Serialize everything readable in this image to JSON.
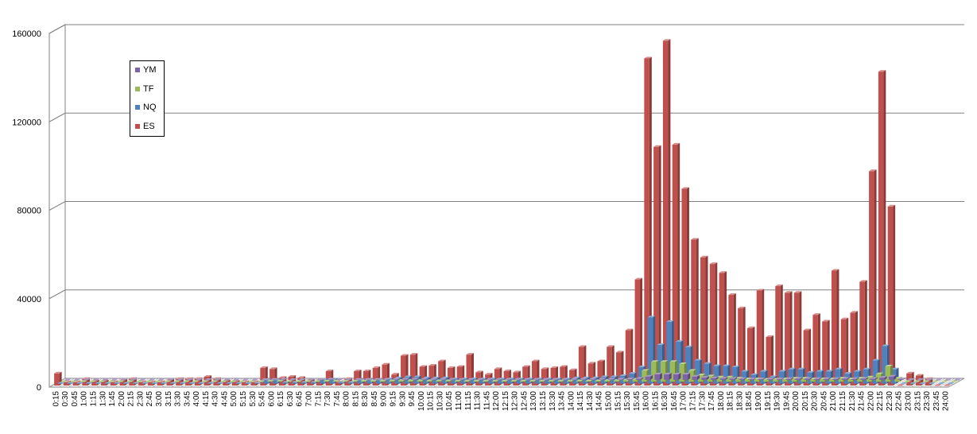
{
  "chart_data": {
    "type": "bar",
    "style": "3d-clustered-column",
    "ylim": [
      0,
      160000
    ],
    "yticks": [
      "0",
      "40000",
      "80000",
      "120000",
      "160000"
    ],
    "ytick_values": [
      0,
      40000,
      80000,
      120000,
      160000
    ],
    "grid": true,
    "legend_placement": "top-left",
    "categories": [
      "0:15",
      "0:30",
      "0:45",
      "1:00",
      "1:15",
      "1:30",
      "1:45",
      "2:00",
      "2:15",
      "2:30",
      "2:45",
      "3:00",
      "3:15",
      "3:30",
      "3:45",
      "4:00",
      "4:15",
      "4:30",
      "4:45",
      "5:00",
      "5:15",
      "5:30",
      "5:45",
      "6:00",
      "6:15",
      "6:30",
      "6:45",
      "7:00",
      "7:15",
      "7:30",
      "7:45",
      "8:00",
      "8:15",
      "8:30",
      "8:45",
      "9:00",
      "9:15",
      "9:30",
      "9:45",
      "10:00",
      "10:15",
      "10:30",
      "10:45",
      "11:00",
      "11:15",
      "11:30",
      "11:45",
      "12:00",
      "12:15",
      "12:30",
      "12:45",
      "13:00",
      "13:15",
      "13:30",
      "13:45",
      "14:00",
      "14:15",
      "14:30",
      "14:45",
      "15:00",
      "15:15",
      "15:30",
      "15:45",
      "16:00",
      "16:15",
      "16:30",
      "16:45",
      "17:00",
      "17:15",
      "17:30",
      "17:45",
      "18:00",
      "18:15",
      "18:30",
      "18:45",
      "19:00",
      "19:15",
      "19:30",
      "19:45",
      "20:00",
      "20:15",
      "20:30",
      "20:45",
      "21:00",
      "21:15",
      "21:30",
      "21:45",
      "22:00",
      "22:15",
      "22:30",
      "22:45",
      "23:00",
      "23:15",
      "23:30",
      "23:45",
      "24:00"
    ],
    "series": [
      {
        "name": "YM",
        "color": "#7f63a8",
        "values": [
          0,
          0,
          0,
          0,
          0,
          0,
          0,
          0,
          0,
          0,
          0,
          0,
          0,
          0,
          0,
          0,
          0,
          0,
          0,
          0,
          0,
          0,
          100,
          100,
          0,
          0,
          0,
          0,
          200,
          200,
          100,
          100,
          100,
          100,
          100,
          200,
          200,
          200,
          200,
          100,
          100,
          100,
          100,
          100,
          100,
          100,
          100,
          100,
          100,
          100,
          100,
          100,
          100,
          100,
          100,
          200,
          200,
          200,
          200,
          200,
          300,
          500,
          1500,
          2500,
          2500,
          2500,
          2500,
          1500,
          1000,
          800,
          600,
          500,
          400,
          300,
          300,
          300,
          300,
          400,
          500,
          500,
          400,
          400,
          400,
          500,
          400,
          500,
          500,
          1000,
          1500,
          300,
          0,
          0,
          0,
          0,
          0,
          0
        ]
      },
      {
        "name": "TF",
        "color": "#9bbb59",
        "values": [
          0,
          0,
          0,
          0,
          0,
          0,
          0,
          0,
          0,
          0,
          0,
          0,
          0,
          0,
          0,
          0,
          0,
          0,
          0,
          0,
          0,
          0,
          200,
          200,
          100,
          100,
          100,
          100,
          300,
          300,
          200,
          200,
          300,
          300,
          300,
          400,
          500,
          500,
          500,
          400,
          400,
          400,
          300,
          300,
          300,
          300,
          300,
          300,
          300,
          300,
          300,
          300,
          300,
          300,
          300,
          400,
          400,
          400,
          500,
          500,
          700,
          1000,
          5000,
          9000,
          9000,
          9000,
          8000,
          5000,
          3000,
          2500,
          2000,
          2000,
          1500,
          1200,
          1200,
          1000,
          1000,
          1200,
          1500,
          1500,
          1200,
          1200,
          1200,
          1500,
          1200,
          1500,
          2000,
          3500,
          7000,
          1500,
          0,
          0,
          0,
          0,
          0,
          0
        ]
      },
      {
        "name": "NQ",
        "color": "#4f81bd",
        "values": [
          100,
          100,
          100,
          100,
          100,
          100,
          100,
          100,
          100,
          100,
          100,
          100,
          100,
          100,
          100,
          100,
          100,
          100,
          100,
          100,
          100,
          200,
          1500,
          1500,
          500,
          500,
          500,
          500,
          1800,
          1800,
          500,
          500,
          1500,
          1500,
          1500,
          2000,
          2500,
          3000,
          3000,
          2500,
          2500,
          2500,
          2000,
          2000,
          2000,
          2000,
          2000,
          2000,
          2000,
          2000,
          2000,
          2000,
          2000,
          2000,
          2000,
          2500,
          2500,
          2500,
          3000,
          3000,
          3500,
          4500,
          7500,
          30000,
          17500,
          28000,
          19000,
          16500,
          10500,
          9000,
          8000,
          8000,
          7500,
          5500,
          4000,
          5500,
          3000,
          5500,
          6500,
          6500,
          5000,
          5500,
          5500,
          6500,
          4500,
          5500,
          6500,
          10500,
          17000,
          6500,
          0,
          0,
          0,
          0,
          0,
          0
        ]
      },
      {
        "name": "ES",
        "color": "#c0504d",
        "values": [
          5500,
          1500,
          1500,
          3000,
          2000,
          2000,
          1500,
          2500,
          3000,
          1500,
          1500,
          1500,
          2500,
          3000,
          3000,
          3000,
          4000,
          3000,
          2000,
          1800,
          1500,
          1500,
          8000,
          7500,
          3500,
          4000,
          3500,
          2500,
          2500,
          6500,
          1500,
          3000,
          6500,
          6500,
          8000,
          9500,
          5000,
          13500,
          14000,
          8500,
          9000,
          11000,
          8000,
          8500,
          14000,
          6000,
          5000,
          7500,
          6500,
          6000,
          8500,
          11000,
          7500,
          8000,
          8500,
          7000,
          17500,
          10000,
          11000,
          17500,
          15000,
          25000,
          48000,
          148000,
          108000,
          156000,
          109000,
          89000,
          66000,
          58000,
          55000,
          51000,
          41000,
          35000,
          26000,
          43000,
          22000,
          45000,
          42000,
          42000,
          25000,
          32000,
          29000,
          52000,
          30000,
          33000,
          47000,
          97000,
          142000,
          81000,
          0,
          5500,
          4500,
          3000,
          0,
          0
        ]
      }
    ]
  }
}
